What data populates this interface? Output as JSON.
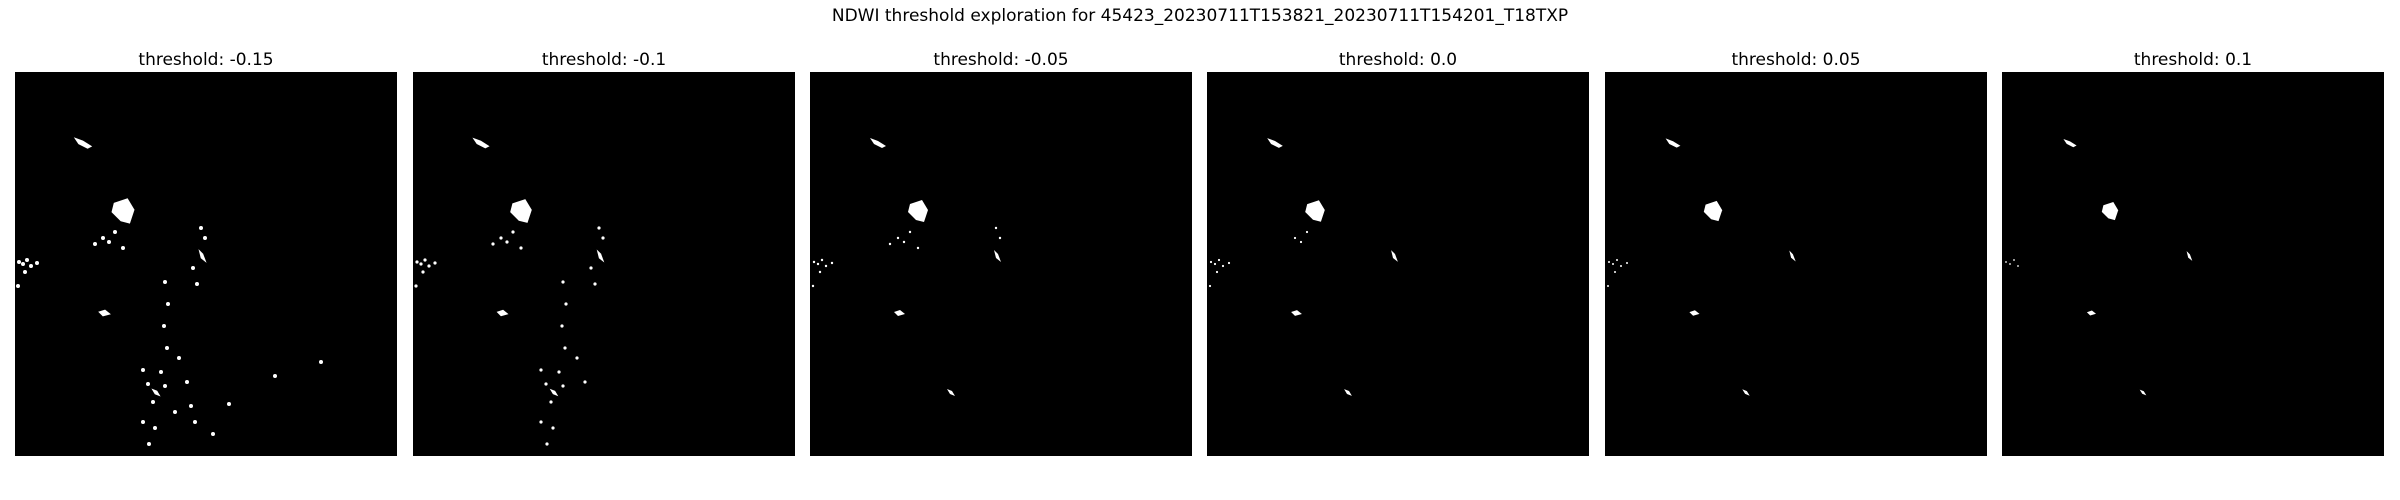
{
  "figure": {
    "suptitle": "NDWI threshold exploration for 45423_20230711T153821_20230711T154201_T18TXP"
  },
  "panels": [
    {
      "title": "threshold: -0.15",
      "threshold": -0.15
    },
    {
      "title": "threshold: -0.1",
      "threshold": -0.1
    },
    {
      "title": "threshold: -0.05",
      "threshold": -0.05
    },
    {
      "title": "threshold: 0.0",
      "threshold": 0.0
    },
    {
      "title": "threshold: 0.05",
      "threshold": 0.05
    },
    {
      "title": "threshold: 0.1",
      "threshold": 0.1
    }
  ],
  "colors": {
    "water": "#ffffff",
    "background": "#000000"
  }
}
